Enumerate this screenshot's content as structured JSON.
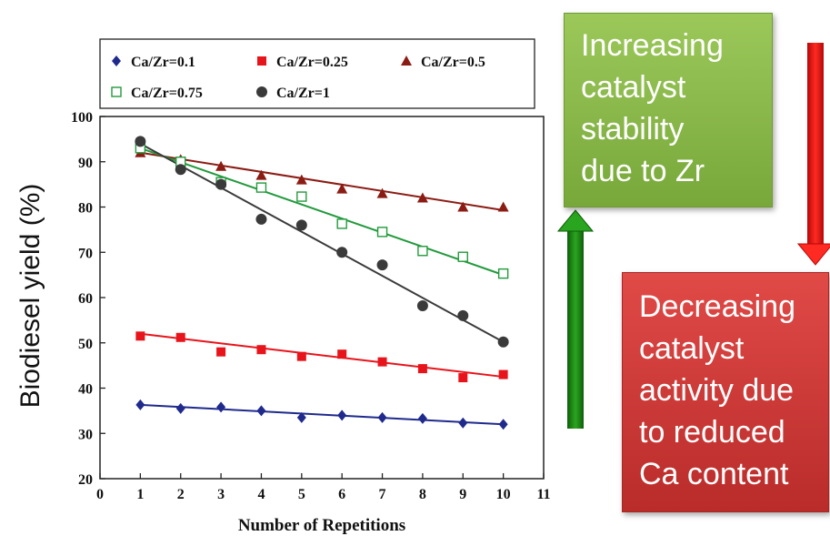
{
  "chart_data": {
    "type": "scatter",
    "xlabel": "Number of Repetitions",
    "ylabel": "Biodiesel yield (%)",
    "xlim": [
      0,
      11
    ],
    "ylim": [
      20,
      100
    ],
    "xticks": [
      0,
      1,
      2,
      3,
      4,
      5,
      6,
      7,
      8,
      9,
      10,
      11
    ],
    "yticks": [
      20,
      30,
      40,
      50,
      60,
      70,
      80,
      90,
      100
    ],
    "grid": false,
    "legend_position": "top",
    "series": [
      {
        "name": "Ca/Zr=0.1",
        "marker": "diamond",
        "color": "#1f2a8c",
        "x": [
          1,
          2,
          3,
          4,
          5,
          6,
          7,
          8,
          9,
          10
        ],
        "y": [
          36.3,
          35.5,
          35.8,
          35.0,
          33.5,
          34.0,
          33.5,
          33.3,
          32.3,
          32.0
        ],
        "fit": [
          36.3,
          32.0
        ]
      },
      {
        "name": "Ca/Zr=0.25",
        "marker": "square",
        "color": "#e8141b",
        "x": [
          1,
          2,
          3,
          4,
          5,
          6,
          7,
          8,
          9,
          10
        ],
        "y": [
          51.5,
          51.2,
          48.0,
          48.5,
          47.0,
          47.5,
          45.8,
          44.3,
          42.3,
          43.0
        ],
        "fit": [
          52.0,
          42.5
        ]
      },
      {
        "name": "Ca/Zr=0.5",
        "marker": "triangle",
        "color": "#8b1c14",
        "x": [
          1,
          2,
          3,
          4,
          5,
          6,
          7,
          8,
          9,
          10
        ],
        "y": [
          92.0,
          90.5,
          89.0,
          87.0,
          86.0,
          84.0,
          83.0,
          82.0,
          80.0,
          80.0
        ],
        "fit": [
          92.0,
          79.3
        ]
      },
      {
        "name": "Ca/Zr=0.75",
        "marker": "open-square",
        "color": "#229a3c",
        "x": [
          1,
          2,
          3,
          4,
          5,
          6,
          7,
          8,
          9,
          10
        ],
        "y": [
          93.0,
          90.0,
          85.5,
          84.3,
          82.3,
          76.3,
          74.5,
          70.3,
          69.0,
          65.3
        ],
        "fit": [
          93.0,
          65.0
        ]
      },
      {
        "name": "Ca/Zr=1",
        "marker": "circle",
        "color": "#3a3a3a",
        "x": [
          1,
          2,
          3,
          4,
          5,
          6,
          7,
          8,
          9,
          10
        ],
        "y": [
          94.5,
          88.3,
          85.0,
          77.3,
          76.0,
          70.0,
          67.2,
          58.2,
          56.0,
          50.2
        ],
        "fit": [
          94.0,
          50.2
        ]
      }
    ]
  },
  "callouts": {
    "green": {
      "lines": [
        "Increasing",
        "catalyst",
        "stability",
        "due to Zr"
      ],
      "color": "#86b548"
    },
    "red": {
      "lines": [
        "Decreasing",
        "catalyst",
        "activity due",
        "to reduced",
        "Ca content"
      ],
      "color": "#c9302e"
    }
  },
  "arrows": {
    "up_color": "#1a7d12",
    "down_color": "#e01010"
  }
}
